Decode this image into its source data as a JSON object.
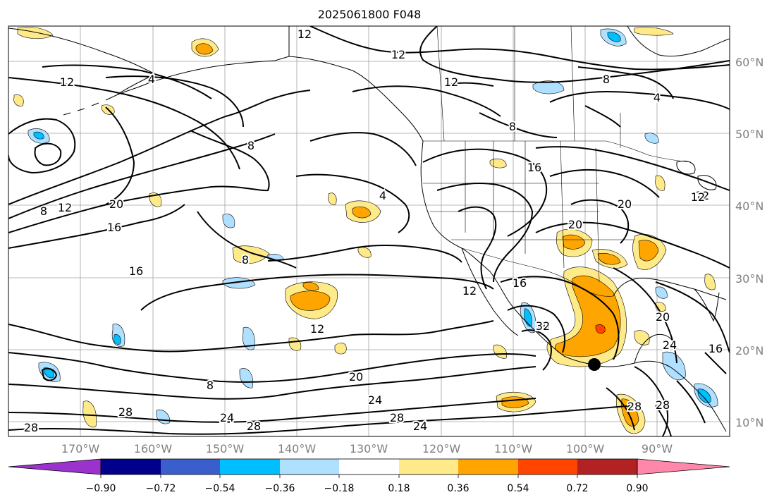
{
  "title": "2025061800 F048",
  "map": {
    "lon_labels": [
      "170°W",
      "160°W",
      "150°W",
      "140°W",
      "130°W",
      "120°W",
      "110°W",
      "100°W",
      "90°W"
    ],
    "lat_labels": [
      "60°N",
      "50°N",
      "40°N",
      "30°N",
      "20°N",
      "10°N"
    ],
    "gridlines": true,
    "land_outline_color": "#000000",
    "gridline_color": "#a0a0a0",
    "contour_color": "#000000"
  },
  "contour_labels": [
    {
      "text": "12"
    },
    {
      "text": "12"
    },
    {
      "text": "12"
    },
    {
      "text": "12"
    },
    {
      "text": "8"
    },
    {
      "text": "4"
    },
    {
      "text": "4"
    },
    {
      "text": "8"
    },
    {
      "text": "8"
    },
    {
      "text": "12"
    },
    {
      "text": "20"
    },
    {
      "text": "16"
    },
    {
      "text": "8"
    },
    {
      "text": "4"
    },
    {
      "text": "16"
    },
    {
      "text": "16"
    },
    {
      "text": "8"
    },
    {
      "text": "12"
    },
    {
      "text": "16"
    },
    {
      "text": "12"
    },
    {
      "text": "20"
    },
    {
      "text": "24"
    },
    {
      "text": "28"
    },
    {
      "text": "28"
    },
    {
      "text": "24"
    },
    {
      "text": "28"
    },
    {
      "text": "24"
    },
    {
      "text": "20"
    },
    {
      "text": "20"
    },
    {
      "text": "16"
    },
    {
      "text": "28"
    },
    {
      "text": "28"
    },
    {
      "text": "8"
    },
    {
      "text": "28"
    },
    {
      "text": "24"
    },
    {
      "text": "12"
    },
    {
      "text": "20"
    },
    {
      "text": "12"
    },
    {
      "text": "20"
    },
    {
      "text": "32"
    }
  ],
  "shading_palette": {
    "neg_very_strong": "#9a33cc",
    "neg_090": "#00008b",
    "neg_072": "#3a5fcd",
    "neg_054": "#00bfff",
    "neg_036": "#b0e0ff",
    "neutral": "#ffffff",
    "pos_018": "#ffea8a",
    "pos_036": "#ffa500",
    "pos_054": "#ff4500",
    "pos_072": "#b22222",
    "pos_090": "#ff88aa"
  },
  "colorbar": {
    "tick_labels": [
      "−0.90",
      "−0.72",
      "−0.54",
      "−0.36",
      "−0.18",
      "0.18",
      "0.36",
      "0.54",
      "0.72",
      "0.90"
    ],
    "colors": [
      "#9933cc",
      "#00008b",
      "#3a5fcd",
      "#00bfff",
      "#b0e0ff",
      "#ffffff",
      "#ffea8a",
      "#ffa500",
      "#ff4500",
      "#b22222",
      "#ff88aa"
    ]
  },
  "marker": {
    "label": "storm-center",
    "color": "#000000"
  }
}
